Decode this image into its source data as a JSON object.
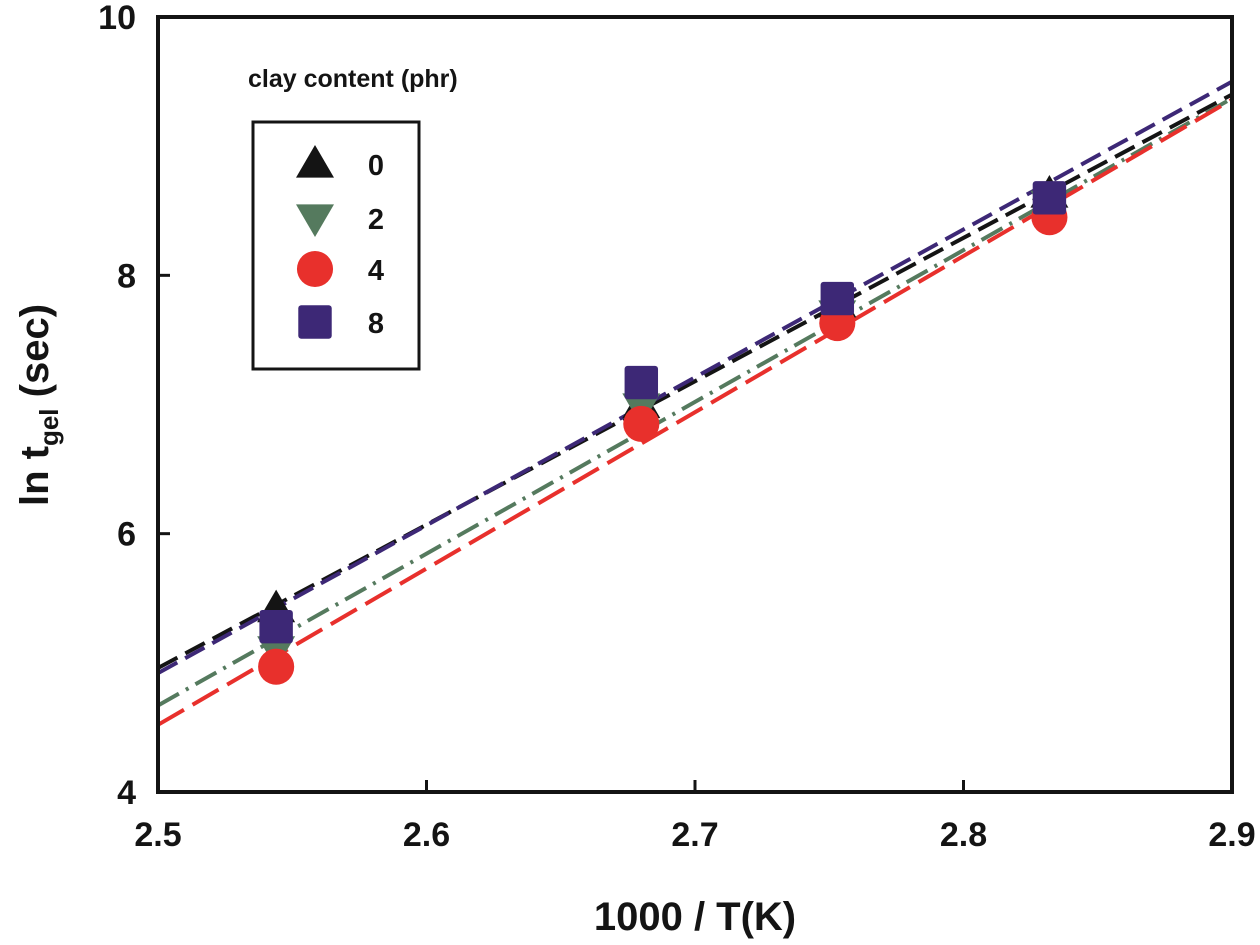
{
  "chart_data": {
    "type": "scatter",
    "title": "",
    "xlabel": "1000 / T(K)",
    "ylabel_main": "ln t",
    "ylabel_sub": "gel",
    "ylabel_tail": " (sec)",
    "ylabel": "ln t_gel (sec)",
    "xlim": [
      2.5,
      2.9
    ],
    "ylim": [
      4,
      10
    ],
    "xticks": [
      2.5,
      2.6,
      2.7,
      2.8,
      2.9
    ],
    "xtick_labels": [
      "2.5",
      "2.6",
      "2.7",
      "2.8",
      "2.9"
    ],
    "yticks": [
      4,
      6,
      8,
      10
    ],
    "ytick_labels": [
      "4",
      "6",
      "8",
      "10"
    ],
    "grid": false,
    "legend": {
      "title": "clay content (phr)",
      "placement": "top-left"
    },
    "series": [
      {
        "name": "0",
        "marker": "triangle-up",
        "color": "#141414",
        "line_style": "dashed",
        "x": [
          2.544,
          2.68,
          2.753,
          2.832
        ],
        "y": [
          5.42,
          7.0,
          7.78,
          8.63
        ],
        "fit": {
          "x": [
            2.5,
            2.9
          ],
          "y": [
            4.96,
            9.4
          ]
        }
      },
      {
        "name": "2",
        "marker": "triangle-down",
        "color": "#557a5e",
        "line_style": "dash-dot",
        "x": [
          2.544,
          2.68,
          2.753,
          2.832
        ],
        "y": [
          5.1,
          6.98,
          7.7,
          8.55
        ],
        "fit": {
          "x": [
            2.5,
            2.9
          ],
          "y": [
            4.67,
            9.37
          ]
        }
      },
      {
        "name": "4",
        "marker": "circle",
        "color": "#e8302c",
        "line_style": "long-dashed",
        "x": [
          2.544,
          2.68,
          2.753,
          2.832
        ],
        "y": [
          4.97,
          6.85,
          7.63,
          8.45
        ],
        "fit": {
          "x": [
            2.5,
            2.9
          ],
          "y": [
            4.52,
            9.36
          ]
        }
      },
      {
        "name": "8",
        "marker": "square",
        "color": "#3d2876",
        "line_style": "dashed",
        "x": [
          2.544,
          2.68,
          2.753,
          2.832
        ],
        "y": [
          5.28,
          7.17,
          7.82,
          8.6
        ],
        "fit": {
          "x": [
            2.5,
            2.9
          ],
          "y": [
            4.92,
            9.5
          ]
        }
      }
    ]
  }
}
